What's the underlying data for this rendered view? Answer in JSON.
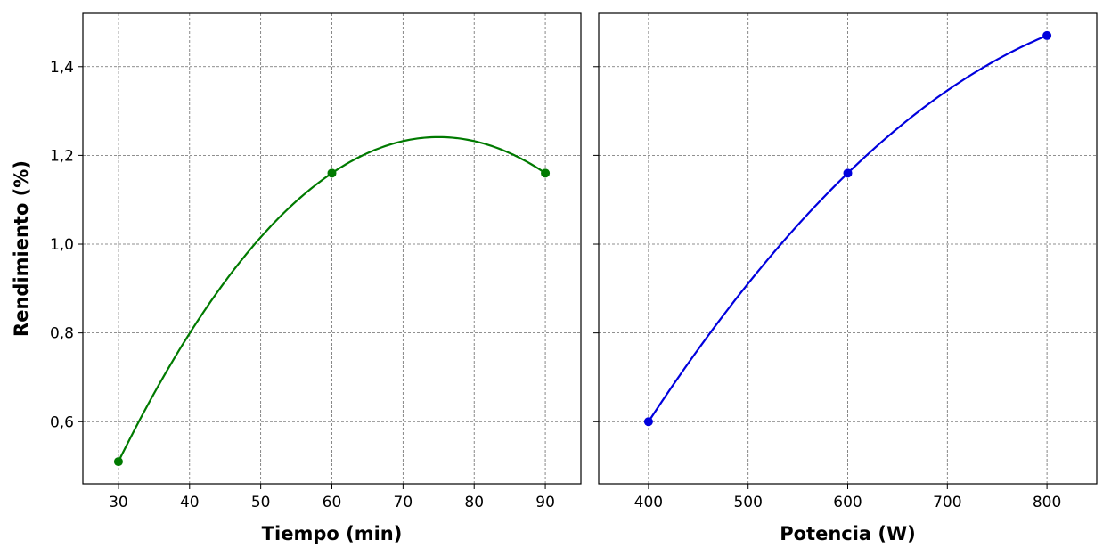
{
  "chart_data": [
    {
      "type": "line",
      "title": "",
      "xlabel": "Tiempo (min)",
      "ylabel": "Rendimiento (%)",
      "xlim": [
        25,
        95
      ],
      "ylim": [
        0.46,
        1.52
      ],
      "xticks": [
        30,
        40,
        50,
        60,
        70,
        80,
        90
      ],
      "yticks": [
        0.6,
        0.8,
        1.0,
        1.2,
        1.4
      ],
      "grid": true,
      "color": "#007a00",
      "points": {
        "x": [
          30,
          60,
          90
        ],
        "y": [
          0.51,
          1.16,
          1.16
        ]
      }
    },
    {
      "type": "line",
      "title": "",
      "xlabel": "Potencia (W)",
      "ylabel": "",
      "xlim": [
        350,
        850
      ],
      "ylim": [
        0.46,
        1.52
      ],
      "xticks": [
        400,
        500,
        600,
        700,
        800
      ],
      "yticks": [
        0.6,
        0.8,
        1.0,
        1.2,
        1.4
      ],
      "grid": true,
      "color": "#0000dd",
      "points": {
        "x": [
          400,
          600,
          800
        ],
        "y": [
          0.6,
          1.16,
          1.47
        ]
      }
    }
  ]
}
